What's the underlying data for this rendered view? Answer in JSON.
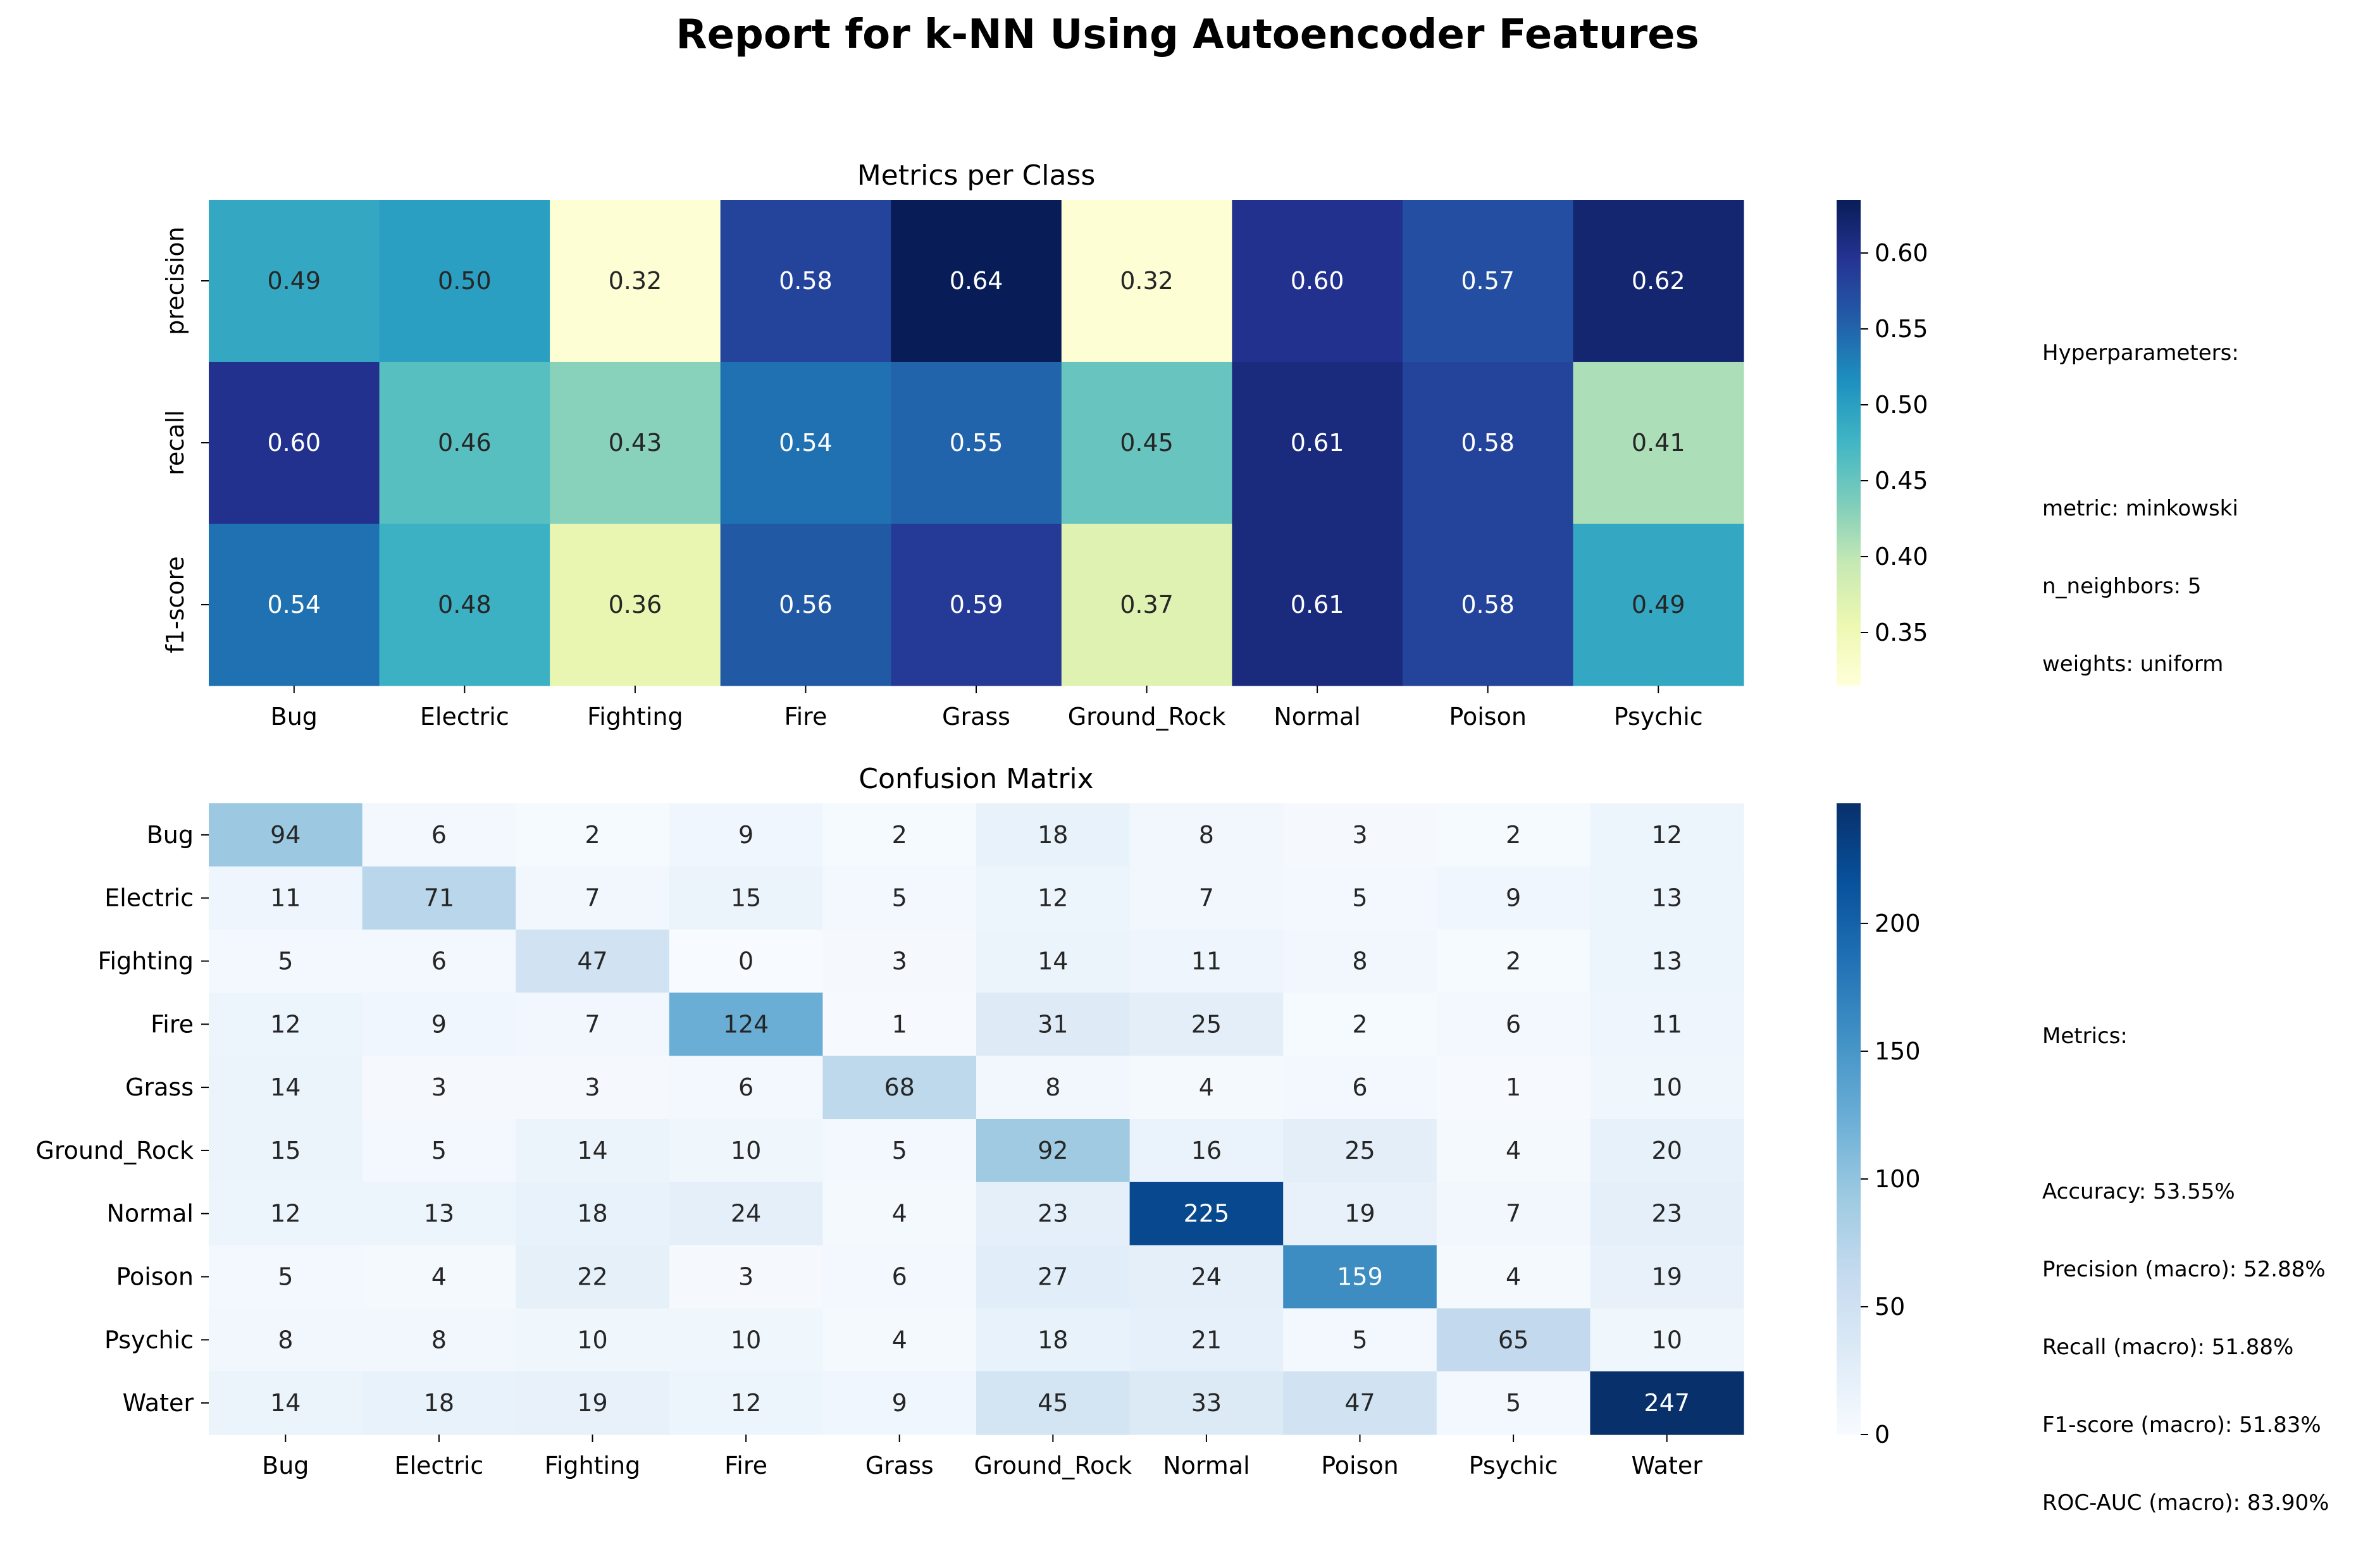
{
  "figure": {
    "title": "Report for k-NN Using Autoencoder Features"
  },
  "hyperparameters": {
    "heading": "Hyperparameters:",
    "lines": [
      "metric: minkowski",
      "n_neighbors: 5",
      "weights: uniform"
    ]
  },
  "metrics_summary": {
    "heading": "Metrics:",
    "lines": [
      "Accuracy: 53.55%",
      "Precision (macro): 52.88%",
      "Recall (macro): 51.88%",
      "F1-score (macro): 51.83%",
      "ROC-AUC (macro): 83.90%"
    ]
  },
  "chart_data": [
    {
      "type": "heatmap",
      "title": "Metrics per Class",
      "colormap": "YlGnBu",
      "x_categories": [
        "Bug",
        "Electric",
        "Fighting",
        "Fire",
        "Grass",
        "Ground_Rock",
        "Normal",
        "Poison",
        "Psychic"
      ],
      "y_categories": [
        "precision",
        "recall",
        "f1-score"
      ],
      "values": [
        [
          0.49,
          0.5,
          0.32,
          0.58,
          0.64,
          0.32,
          0.6,
          0.57,
          0.62
        ],
        [
          0.6,
          0.46,
          0.43,
          0.54,
          0.55,
          0.45,
          0.61,
          0.58,
          0.41
        ],
        [
          0.54,
          0.48,
          0.36,
          0.56,
          0.59,
          0.37,
          0.61,
          0.58,
          0.49
        ]
      ],
      "value_format": "0.00",
      "colorbar": {
        "min": 0.315,
        "max": 0.635,
        "ticks": [
          0.35,
          0.4,
          0.45,
          0.5,
          0.55,
          0.6
        ],
        "tick_labels": [
          "0.35",
          "0.40",
          "0.45",
          "0.50",
          "0.55",
          "0.60"
        ]
      }
    },
    {
      "type": "heatmap",
      "title": "Confusion Matrix",
      "colormap": "Blues",
      "x_categories": [
        "Bug",
        "Electric",
        "Fighting",
        "Fire",
        "Grass",
        "Ground_Rock",
        "Normal",
        "Poison",
        "Psychic",
        "Water"
      ],
      "y_categories": [
        "Bug",
        "Electric",
        "Fighting",
        "Fire",
        "Grass",
        "Ground_Rock",
        "Normal",
        "Poison",
        "Psychic",
        "Water"
      ],
      "values": [
        [
          94,
          6,
          2,
          9,
          2,
          18,
          8,
          3,
          2,
          12
        ],
        [
          11,
          71,
          7,
          15,
          5,
          12,
          7,
          5,
          9,
          13
        ],
        [
          5,
          6,
          47,
          0,
          3,
          14,
          11,
          8,
          2,
          13
        ],
        [
          12,
          9,
          7,
          124,
          1,
          31,
          25,
          2,
          6,
          11
        ],
        [
          14,
          3,
          3,
          6,
          68,
          8,
          4,
          6,
          1,
          10
        ],
        [
          15,
          5,
          14,
          10,
          5,
          92,
          16,
          25,
          4,
          20
        ],
        [
          12,
          13,
          18,
          24,
          4,
          23,
          225,
          19,
          7,
          23
        ],
        [
          5,
          4,
          22,
          3,
          6,
          27,
          24,
          159,
          4,
          19
        ],
        [
          8,
          8,
          10,
          10,
          4,
          18,
          21,
          5,
          65,
          10
        ],
        [
          14,
          18,
          19,
          12,
          9,
          45,
          33,
          47,
          5,
          247
        ]
      ],
      "value_format": "0",
      "colorbar": {
        "min": 0,
        "max": 247,
        "ticks": [
          0,
          50,
          100,
          150,
          200
        ],
        "tick_labels": [
          "0",
          "50",
          "100",
          "150",
          "200"
        ]
      }
    }
  ]
}
